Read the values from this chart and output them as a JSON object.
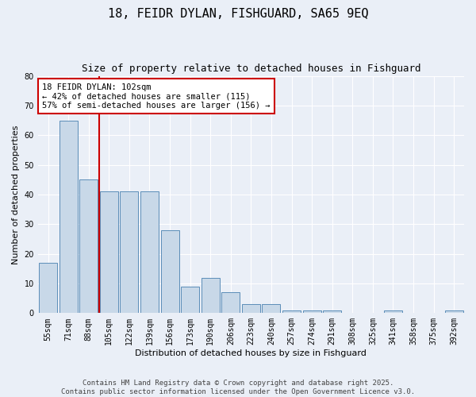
{
  "title": "18, FEIDR DYLAN, FISHGUARD, SA65 9EQ",
  "subtitle": "Size of property relative to detached houses in Fishguard",
  "xlabel": "Distribution of detached houses by size in Fishguard",
  "ylabel": "Number of detached properties",
  "categories": [
    "55sqm",
    "71sqm",
    "88sqm",
    "105sqm",
    "122sqm",
    "139sqm",
    "156sqm",
    "173sqm",
    "190sqm",
    "206sqm",
    "223sqm",
    "240sqm",
    "257sqm",
    "274sqm",
    "291sqm",
    "308sqm",
    "325sqm",
    "341sqm",
    "358sqm",
    "375sqm",
    "392sqm"
  ],
  "values": [
    17,
    65,
    45,
    41,
    41,
    41,
    28,
    9,
    12,
    7,
    3,
    3,
    1,
    1,
    1,
    0,
    0,
    1,
    0,
    0,
    1
  ],
  "bar_color": "#c8d8e8",
  "bar_edge_color": "#5b8db8",
  "vline_color": "#cc0000",
  "vline_pos": 2.5,
  "ylim": [
    0,
    80
  ],
  "yticks": [
    0,
    10,
    20,
    30,
    40,
    50,
    60,
    70,
    80
  ],
  "annotation_line1": "18 FEIDR DYLAN: 102sqm",
  "annotation_line2": "← 42% of detached houses are smaller (115)",
  "annotation_line3": "57% of semi-detached houses are larger (156) →",
  "annotation_box_color": "#ffffff",
  "annotation_box_edge": "#cc0000",
  "footer_text": "Contains HM Land Registry data © Crown copyright and database right 2025.\nContains public sector information licensed under the Open Government Licence v3.0.",
  "bg_color": "#eaeff7",
  "plot_bg_color": "#eaeff7",
  "grid_color": "#ffffff",
  "title_fontsize": 11,
  "subtitle_fontsize": 9,
  "axis_label_fontsize": 8,
  "tick_fontsize": 7,
  "annot_fontsize": 7.5,
  "footer_fontsize": 6.5
}
